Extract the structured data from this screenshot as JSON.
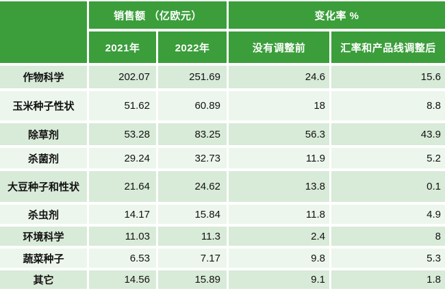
{
  "chart_data": {
    "type": "table",
    "header_groups": {
      "sales": "销售额 （亿欧元）",
      "change": "变化率 %"
    },
    "subheaders": {
      "y2021": "2021年",
      "y2022": "2022年",
      "before": "没有调整前",
      "adjusted": "汇率和产品线调整后"
    },
    "rows": [
      {
        "label": "作物科学",
        "y2021": "202.07",
        "y2022": "251.69",
        "before": "24.6",
        "adjusted": "15.6"
      },
      {
        "label": "玉米种子性状",
        "y2021": "51.62",
        "y2022": "60.89",
        "before": "18",
        "adjusted": "8.8"
      },
      {
        "label": "除草剂",
        "y2021": "53.28",
        "y2022": "83.25",
        "before": "56.3",
        "adjusted": "43.9"
      },
      {
        "label": "杀菌剂",
        "y2021": "29.24",
        "y2022": "32.73",
        "before": "11.9",
        "adjusted": "5.2"
      },
      {
        "label": "大豆种子和性状",
        "y2021": "21.64",
        "y2022": "24.62",
        "before": "13.8",
        "adjusted": "0.1"
      },
      {
        "label": "杀虫剂",
        "y2021": "14.17",
        "y2022": "15.84",
        "before": "11.8",
        "adjusted": "4.9"
      },
      {
        "label": "环境科学",
        "y2021": "11.03",
        "y2022": "11.3",
        "before": "2.4",
        "adjusted": "8"
      },
      {
        "label": "蔬菜种子",
        "y2021": "6.53",
        "y2022": "7.17",
        "before": "9.8",
        "adjusted": "5.3"
      },
      {
        "label": "其它",
        "y2021": "14.56",
        "y2022": "15.89",
        "before": "9.1",
        "adjusted": "1.8"
      }
    ],
    "colors": {
      "header_green": "#3b9e3b",
      "row_tint_dark": "#d8ead8",
      "row_tint_light": "#ecf6ec",
      "gridline": "#ffffff",
      "header_text": "#ffffff",
      "body_text": "#111111"
    },
    "layout": {
      "grid": "white gridlines",
      "legend": "none"
    }
  }
}
